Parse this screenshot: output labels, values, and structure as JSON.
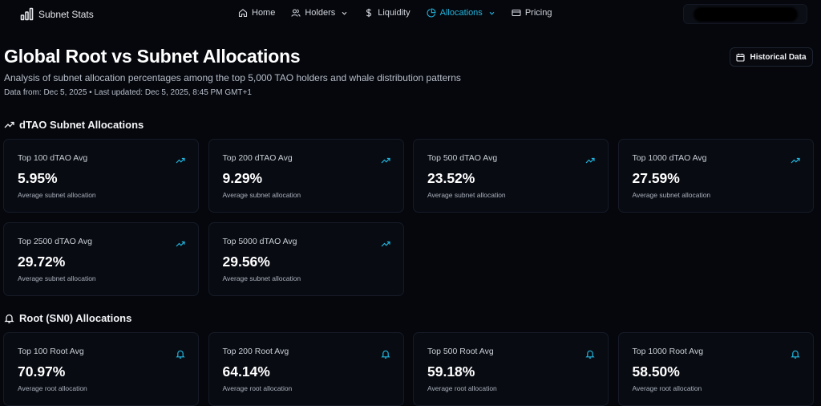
{
  "nav": {
    "brand": "Subnet Stats",
    "items": [
      {
        "label": "Home",
        "icon": "home-icon",
        "dropdown": false,
        "active": false
      },
      {
        "label": "Holders",
        "icon": "users-icon",
        "dropdown": true,
        "active": false
      },
      {
        "label": "Liquidity",
        "icon": "dollar-icon",
        "dropdown": false,
        "active": false
      },
      {
        "label": "Allocations",
        "icon": "pie-chart-icon",
        "dropdown": true,
        "active": true
      },
      {
        "label": "Pricing",
        "icon": "card-icon",
        "dropdown": false,
        "active": false
      }
    ]
  },
  "header": {
    "title": "Global Root vs Subnet Allocations",
    "subtitle": "Analysis of subnet allocation percentages among the top 5,000 TAO holders and whale distribution patterns",
    "meta": "Data from: Dec 5, 2025 • Last updated: Dec 5, 2025, 8:45 PM GMT+1",
    "historical_button": "Historical Data"
  },
  "colors": {
    "accent": "#22b5dd",
    "background": "#05070d",
    "card": "#080b12"
  },
  "dtao": {
    "title": "dTAO Subnet Allocations",
    "icon": "trending-up-icon",
    "cards": [
      {
        "label": "Top 100 dTAO Avg",
        "value": "5.95%",
        "desc": "Average subnet allocation"
      },
      {
        "label": "Top 200 dTAO Avg",
        "value": "9.29%",
        "desc": "Average subnet allocation"
      },
      {
        "label": "Top 500 dTAO Avg",
        "value": "23.52%",
        "desc": "Average subnet allocation"
      },
      {
        "label": "Top 1000 dTAO Avg",
        "value": "27.59%",
        "desc": "Average subnet allocation"
      },
      {
        "label": "Top 2500 dTAO Avg",
        "value": "29.72%",
        "desc": "Average subnet allocation"
      },
      {
        "label": "Top 5000 dTAO Avg",
        "value": "29.56%",
        "desc": "Average subnet allocation"
      }
    ]
  },
  "root": {
    "title": "Root (SN0) Allocations",
    "icon": "bell-icon",
    "cards": [
      {
        "label": "Top 100 Root Avg",
        "value": "70.97%",
        "desc": "Average root allocation"
      },
      {
        "label": "Top 200 Root Avg",
        "value": "64.14%",
        "desc": "Average root allocation"
      },
      {
        "label": "Top 500 Root Avg",
        "value": "59.18%",
        "desc": "Average root allocation"
      },
      {
        "label": "Top 1000 Root Avg",
        "value": "58.50%",
        "desc": "Average root allocation"
      }
    ]
  }
}
